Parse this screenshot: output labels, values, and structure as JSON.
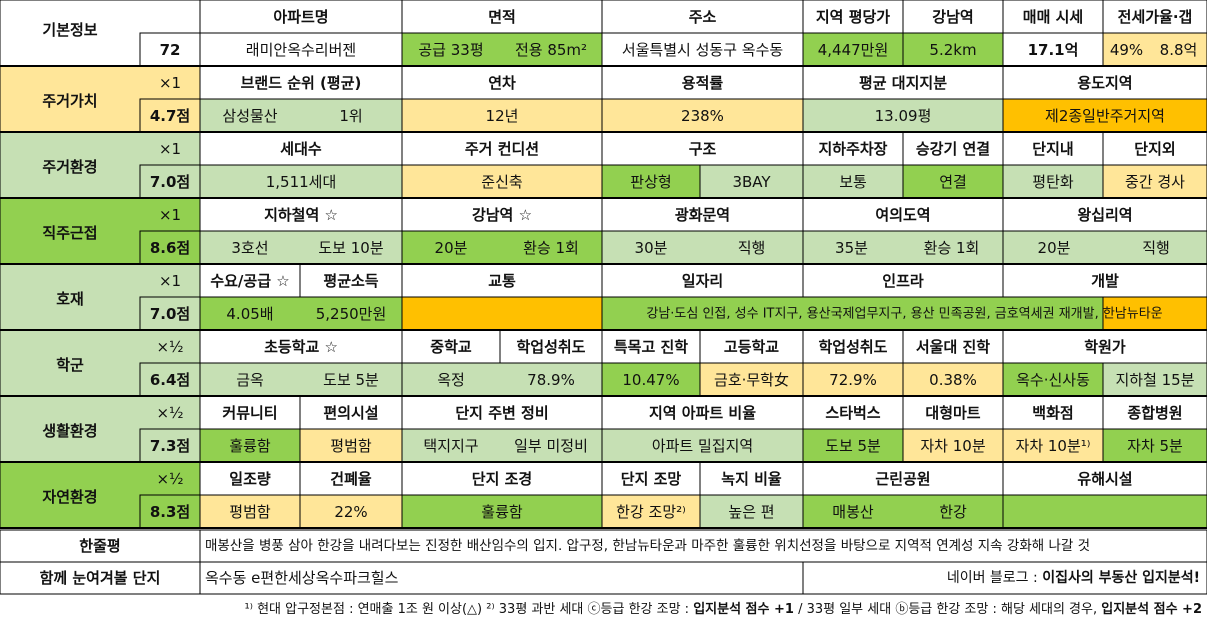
{
  "basic": {
    "label": "기본정보",
    "number": "72",
    "headers": [
      "아파트명",
      "면적",
      "주소",
      "지역 평당가",
      "강남역",
      "매매 시세",
      "전세가율·갭"
    ],
    "values": [
      "래미안옥수리버젠",
      "공급 33평",
      "전용 85m²",
      "서울특별시 성동구 옥수동",
      "4,447만원",
      "5.2km",
      "17.1억",
      "49%",
      "8.8억"
    ]
  },
  "sections": [
    {
      "label": "주거가치",
      "weight": "×1",
      "score": "4.7점",
      "headers": [
        "브랜드 순위 (평균)",
        "연차",
        "용적률",
        "평균 대지지분",
        "용도지역"
      ],
      "values": [
        "삼성물산",
        "1위",
        "12년",
        "238%",
        "13.09평",
        "제2종일반주거지역"
      ]
    },
    {
      "label": "주거환경",
      "weight": "×1",
      "score": "7.0점",
      "headers": [
        "세대수",
        "주거 컨디션",
        "구조",
        "지하주차장",
        "승강기 연결",
        "단지내",
        "단지외"
      ],
      "values": [
        "1,511세대",
        "준신축",
        "판상형",
        "3BAY",
        "보통",
        "연결",
        "평탄화",
        "중간 경사"
      ]
    },
    {
      "label": "직주근접",
      "weight": "×1",
      "score": "8.6점",
      "headers": [
        "지하철역 ☆",
        "강남역 ☆",
        "광화문역",
        "여의도역",
        "왕십리역"
      ],
      "values": [
        "3호선",
        "도보 10분",
        "20분",
        "환승 1회",
        "30분",
        "직행",
        "35분",
        "환승 1회",
        "20분",
        "직행"
      ]
    },
    {
      "label": "호재",
      "weight": "×1",
      "score": "7.0점",
      "headers": [
        "수요/공급 ☆",
        "평균소득",
        "교통",
        "일자리",
        "인프라",
        "개발"
      ],
      "values": [
        "4.05배",
        "5,250만원",
        "강남·도심 인접, 성수 IT지구, 용산국제업무지구, 용산 민족공원, 금호역세권 재개발, 한남뉴타운"
      ]
    },
    {
      "label": "학군",
      "weight": "×½",
      "score": "6.4점",
      "headers": [
        "초등학교 ☆",
        "중학교",
        "학업성취도",
        "특목고 진학",
        "고등학교",
        "학업성취도",
        "서울대 진학",
        "학원가"
      ],
      "values": [
        "금옥",
        "도보 5분",
        "옥정",
        "78.9%",
        "10.47%",
        "금호·무학女",
        "72.9%",
        "0.38%",
        "옥수·신사동",
        "지하철 15분"
      ]
    },
    {
      "label": "생활환경",
      "weight": "×½",
      "score": "7.3점",
      "headers": [
        "커뮤니티",
        "편의시설",
        "단지 주변 정비",
        "지역 아파트 비율",
        "스타벅스",
        "대형마트",
        "백화점",
        "종합병원"
      ],
      "values": [
        "훌륭함",
        "평범함",
        "택지지구",
        "일부 미정비",
        "아파트 밀집지역",
        "도보 5분",
        "자차 10분",
        "자차 10분¹⁾",
        "자차 5분"
      ]
    },
    {
      "label": "자연환경",
      "weight": "×½",
      "score": "8.3점",
      "headers": [
        "일조량",
        "건폐율",
        "단지 조경",
        "단지 조망",
        "녹지 비율",
        "근린공원",
        "유해시설"
      ],
      "values": [
        "평범함",
        "22%",
        "훌륭함",
        "한강 조망²⁾",
        "높은 편",
        "매봉산",
        "한강"
      ]
    }
  ],
  "summary": {
    "label": "한줄평",
    "text": "매봉산을 병풍 삼아 한강을 내려다보는 진정한 배산임수의 입지. 압구정, 한남뉴타운과 마주한 훌륭한 위치선정을 바탕으로 지역적 연계성 지속 강화해 나갈 것"
  },
  "related": {
    "label": "함께 눈여겨볼 단지",
    "text": "옥수동 e편한세상옥수파크힐스",
    "blog": [
      "네이버 블로그 : ",
      "이집사의 부동산 입지분석!"
    ]
  },
  "footnote": [
    "¹⁾ 현대 압구정본점 : 연매출 1조 원 이상(△) ²⁾ 33평 과반 세대 ⓒ등급 한강 조망 : ",
    "입지분석 점수 +1",
    " / 33평 일부 세대 ⓑ등급 한강 조망 : 해당 세대의 경우, ",
    "입지분석 점수 +2"
  ]
}
